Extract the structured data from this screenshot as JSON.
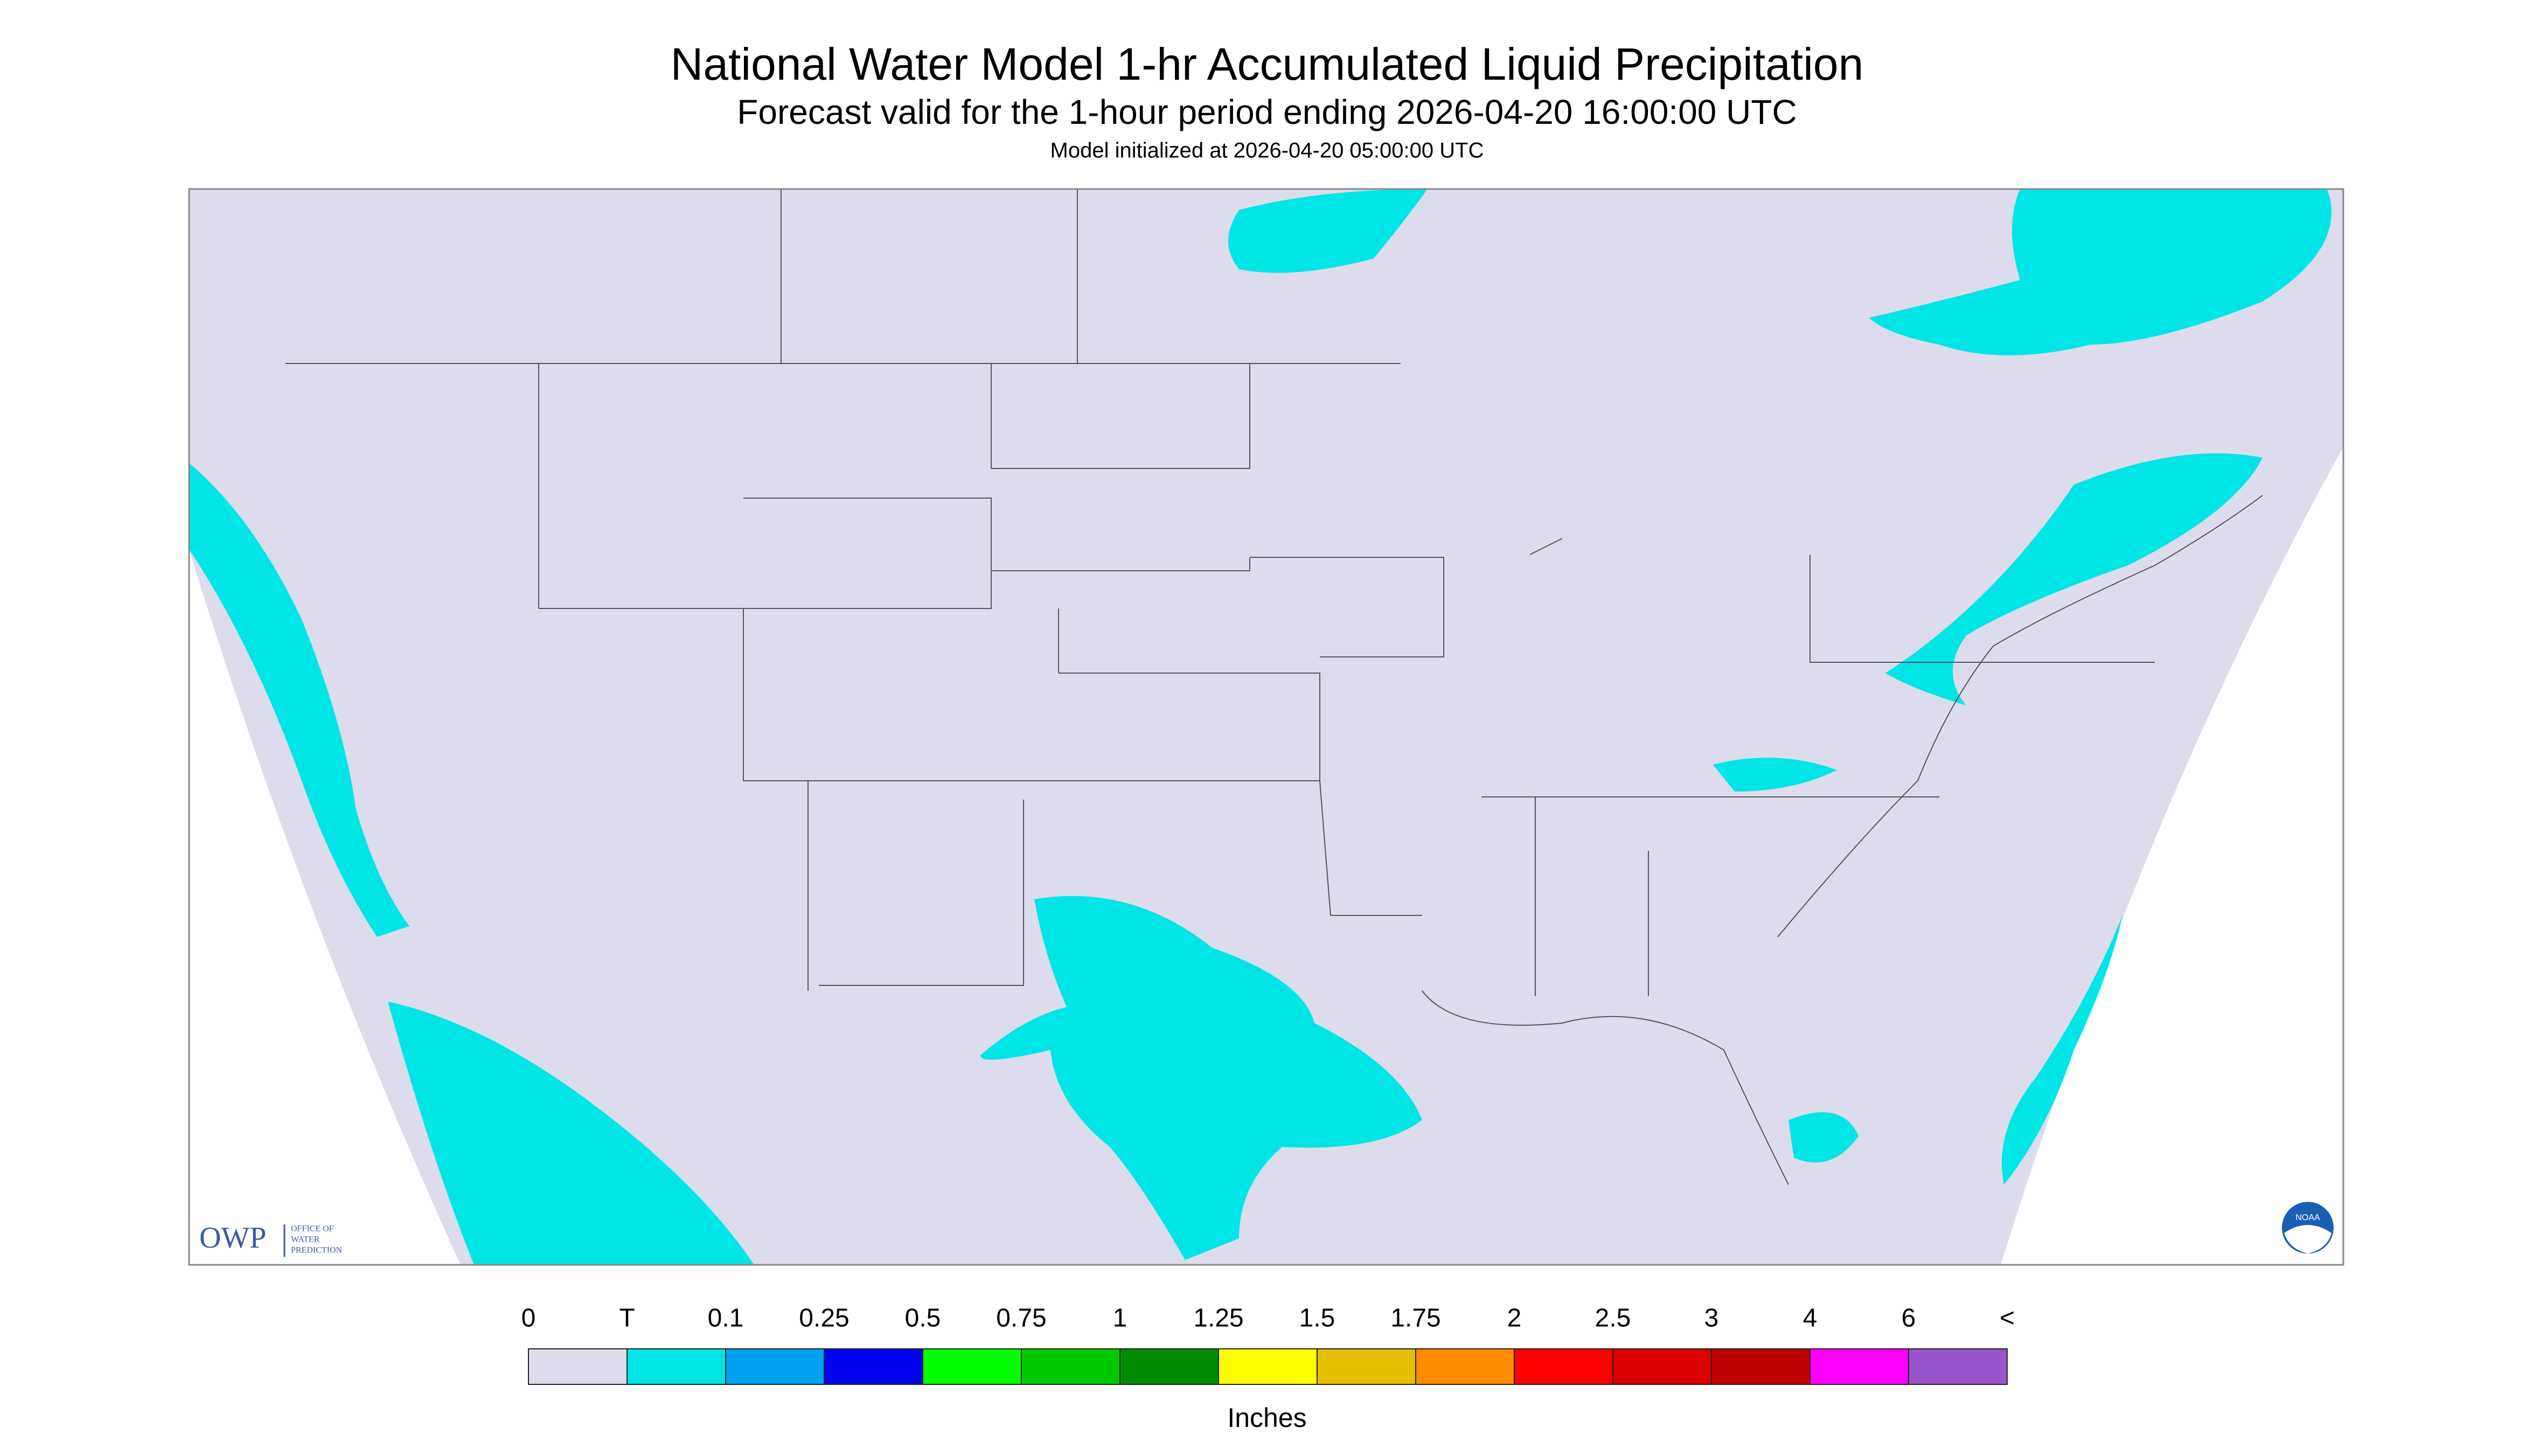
{
  "header": {
    "title": "National Water Model 1-hr Accumulated Liquid Precipitation",
    "subtitle": "Forecast valid for the 1-hour period ending 2026-04-20 16:00:00 UTC",
    "initialized": "Model initialized at 2026-04-20 05:00:00 UTC"
  },
  "legend": {
    "labels": [
      "0",
      "T",
      "0.1",
      "0.25",
      "0.5",
      "0.75",
      "1",
      "1.25",
      "1.5",
      "1.75",
      "2",
      "2.5",
      "3",
      "4",
      "6",
      "<"
    ],
    "colors": [
      "#dcdcec",
      "#00e6e6",
      "#00a0f0",
      "#0000f0",
      "#00ff00",
      "#00c800",
      "#008c00",
      "#ffff00",
      "#e6be00",
      "#ff8c00",
      "#ff0000",
      "#dc0000",
      "#bc0000",
      "#ff00ff",
      "#9955cc"
    ],
    "unit": "Inches"
  },
  "logos": {
    "owp": "OWP",
    "owp_name": [
      "OFFICE OF",
      "WATER",
      "PREDICTION"
    ],
    "noaa": "NOAA"
  }
}
